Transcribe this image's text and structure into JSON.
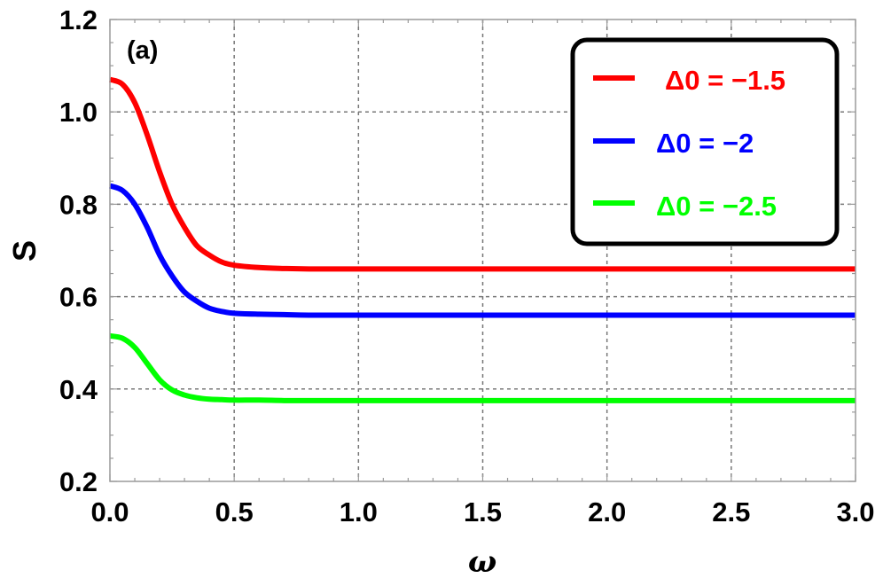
{
  "chart_data": {
    "type": "line",
    "panel_label": "(a)",
    "xlabel": "ω",
    "ylabel": "S",
    "xlim": [
      0,
      3
    ],
    "ylim": [
      0.2,
      1.2
    ],
    "x_ticks": [
      0.0,
      0.5,
      1.0,
      1.5,
      2.0,
      2.5,
      3.0
    ],
    "x_tick_labels": [
      "0.0",
      "0.5",
      "1.0",
      "1.5",
      "2.0",
      "2.5",
      "3.0"
    ],
    "y_ticks": [
      0.2,
      0.4,
      0.6,
      0.8,
      1.0,
      1.2
    ],
    "y_tick_labels": [
      "0.2",
      "0.4",
      "0.6",
      "0.8",
      "1.0",
      "1.2"
    ],
    "grid": true,
    "legend_position": "top-right",
    "x": [
      0.0,
      0.05,
      0.1,
      0.15,
      0.2,
      0.25,
      0.3,
      0.35,
      0.4,
      0.45,
      0.5,
      0.6,
      0.7,
      0.8,
      1.0,
      1.5,
      2.0,
      2.5,
      3.0
    ],
    "series": [
      {
        "name": "Δ0 = −1.5",
        "color": "#ff0000",
        "values": [
          1.07,
          1.06,
          1.02,
          0.95,
          0.87,
          0.8,
          0.75,
          0.71,
          0.69,
          0.675,
          0.668,
          0.663,
          0.661,
          0.66,
          0.66,
          0.66,
          0.66,
          0.66,
          0.66
        ]
      },
      {
        "name": "Δ0 = −2",
        "color": "#0000ff",
        "values": [
          0.84,
          0.83,
          0.8,
          0.75,
          0.69,
          0.645,
          0.61,
          0.59,
          0.575,
          0.568,
          0.564,
          0.562,
          0.561,
          0.56,
          0.56,
          0.56,
          0.56,
          0.56,
          0.56
        ]
      },
      {
        "name": "Δ0 = −2.5",
        "color": "#00ff00",
        "values": [
          0.515,
          0.51,
          0.49,
          0.455,
          0.42,
          0.398,
          0.387,
          0.381,
          0.378,
          0.377,
          0.376,
          0.376,
          0.375,
          0.375,
          0.375,
          0.375,
          0.375,
          0.375,
          0.375
        ]
      }
    ]
  }
}
